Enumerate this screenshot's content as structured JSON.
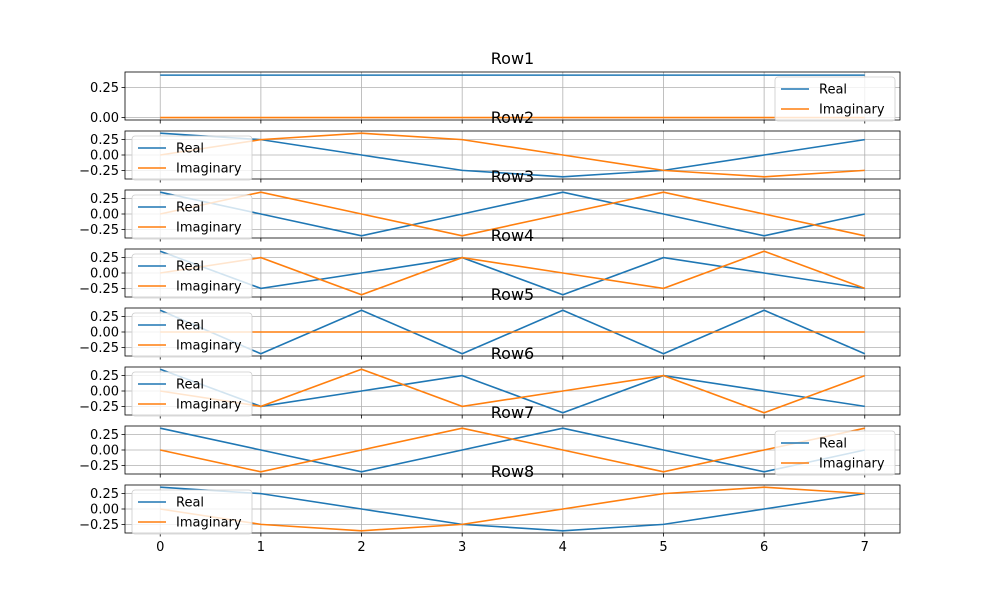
{
  "chart_data": [
    {
      "type": "line",
      "title": "Row1",
      "x": [
        0,
        1,
        2,
        3,
        4,
        5,
        6,
        7
      ],
      "ylim": [
        -0.02,
        0.38
      ],
      "yticks": [
        0.0,
        0.25
      ],
      "ytick_labels": [
        "0.00",
        "0.25"
      ],
      "grid": true,
      "legend": "bottom-right",
      "series": [
        {
          "name": "Real",
          "values": [
            0.354,
            0.354,
            0.354,
            0.354,
            0.354,
            0.354,
            0.354,
            0.354
          ]
        },
        {
          "name": "Imaginary",
          "values": [
            0,
            0,
            0,
            0,
            0,
            0,
            0,
            0
          ]
        }
      ]
    },
    {
      "type": "line",
      "title": "Row2",
      "x": [
        0,
        1,
        2,
        3,
        4,
        5,
        6,
        7
      ],
      "ylim": [
        -0.39,
        0.39
      ],
      "yticks": [
        -0.25,
        0.0,
        0.25
      ],
      "ytick_labels": [
        "−0.25",
        "0.00",
        "0.25"
      ],
      "grid": true,
      "legend": "bottom-left",
      "series": [
        {
          "name": "Real",
          "values": [
            0.354,
            0.25,
            0,
            -0.25,
            -0.354,
            -0.25,
            0,
            0.25
          ]
        },
        {
          "name": "Imaginary",
          "values": [
            0,
            0.25,
            0.354,
            0.25,
            0,
            -0.25,
            -0.354,
            -0.25
          ]
        }
      ]
    },
    {
      "type": "line",
      "title": "Row3",
      "x": [
        0,
        1,
        2,
        3,
        4,
        5,
        6,
        7
      ],
      "ylim": [
        -0.39,
        0.39
      ],
      "yticks": [
        -0.25,
        0.0,
        0.25
      ],
      "ytick_labels": [
        "−0.25",
        "0.00",
        "0.25"
      ],
      "grid": true,
      "legend": "bottom-left",
      "series": [
        {
          "name": "Real",
          "values": [
            0.354,
            0,
            -0.354,
            0,
            0.354,
            0,
            -0.354,
            0
          ]
        },
        {
          "name": "Imaginary",
          "values": [
            0,
            0.354,
            0,
            -0.354,
            0,
            0.354,
            0,
            -0.354
          ]
        }
      ]
    },
    {
      "type": "line",
      "title": "Row4",
      "x": [
        0,
        1,
        2,
        3,
        4,
        5,
        6,
        7
      ],
      "ylim": [
        -0.39,
        0.39
      ],
      "yticks": [
        -0.25,
        0.0,
        0.25
      ],
      "ytick_labels": [
        "−0.25",
        "0.00",
        "0.25"
      ],
      "grid": true,
      "legend": "bottom-left",
      "series": [
        {
          "name": "Real",
          "values": [
            0.354,
            -0.25,
            0,
            0.25,
            -0.354,
            0.25,
            0,
            -0.25
          ]
        },
        {
          "name": "Imaginary",
          "values": [
            0,
            0.25,
            -0.354,
            0.25,
            0,
            -0.25,
            0.354,
            -0.25
          ]
        }
      ]
    },
    {
      "type": "line",
      "title": "Row5",
      "x": [
        0,
        1,
        2,
        3,
        4,
        5,
        6,
        7
      ],
      "ylim": [
        -0.39,
        0.39
      ],
      "yticks": [
        -0.25,
        0.0,
        0.25
      ],
      "ytick_labels": [
        "−0.25",
        "0.00",
        "0.25"
      ],
      "grid": true,
      "legend": "bottom-left",
      "series": [
        {
          "name": "Real",
          "values": [
            0.354,
            -0.354,
            0.354,
            -0.354,
            0.354,
            -0.354,
            0.354,
            -0.354
          ]
        },
        {
          "name": "Imaginary",
          "values": [
            0,
            0,
            0,
            0,
            0,
            0,
            0,
            0
          ]
        }
      ]
    },
    {
      "type": "line",
      "title": "Row6",
      "x": [
        0,
        1,
        2,
        3,
        4,
        5,
        6,
        7
      ],
      "ylim": [
        -0.39,
        0.39
      ],
      "yticks": [
        -0.25,
        0.0,
        0.25
      ],
      "ytick_labels": [
        "−0.25",
        "0.00",
        "0.25"
      ],
      "grid": true,
      "legend": "bottom-left",
      "series": [
        {
          "name": "Real",
          "values": [
            0.354,
            -0.25,
            0,
            0.25,
            -0.354,
            0.25,
            0,
            -0.25
          ]
        },
        {
          "name": "Imaginary",
          "values": [
            0,
            -0.25,
            0.354,
            -0.25,
            0,
            0.25,
            -0.354,
            0.25
          ]
        }
      ]
    },
    {
      "type": "line",
      "title": "Row7",
      "x": [
        0,
        1,
        2,
        3,
        4,
        5,
        6,
        7
      ],
      "ylim": [
        -0.39,
        0.39
      ],
      "yticks": [
        -0.25,
        0.0,
        0.25
      ],
      "ytick_labels": [
        "−0.25",
        "0.00",
        "0.25"
      ],
      "grid": true,
      "legend": "bottom-right",
      "series": [
        {
          "name": "Real",
          "values": [
            0.354,
            0,
            -0.354,
            0,
            0.354,
            0,
            -0.354,
            0
          ]
        },
        {
          "name": "Imaginary",
          "values": [
            0,
            -0.354,
            0,
            0.354,
            0,
            -0.354,
            0,
            0.354
          ]
        }
      ]
    },
    {
      "type": "line",
      "title": "Row8",
      "x": [
        0,
        1,
        2,
        3,
        4,
        5,
        6,
        7
      ],
      "ylim": [
        -0.39,
        0.39
      ],
      "yticks": [
        -0.25,
        0.0,
        0.25
      ],
      "ytick_labels": [
        "−0.25",
        "0.00",
        "0.25"
      ],
      "grid": true,
      "legend": "bottom-left",
      "series": [
        {
          "name": "Real",
          "values": [
            0.354,
            0.25,
            0,
            -0.25,
            -0.354,
            -0.25,
            0,
            0.25
          ]
        },
        {
          "name": "Imaginary",
          "values": [
            0,
            -0.25,
            -0.354,
            -0.25,
            0,
            0.25,
            0.354,
            0.25
          ]
        }
      ]
    }
  ],
  "colors": {
    "Real": "#1f77b4",
    "Imaginary": "#ff7f0e",
    "grid": "#b0b0b0",
    "axis": "#000000"
  },
  "xtick_labels": [
    "0",
    "1",
    "2",
    "3",
    "4",
    "5",
    "6",
    "7"
  ]
}
